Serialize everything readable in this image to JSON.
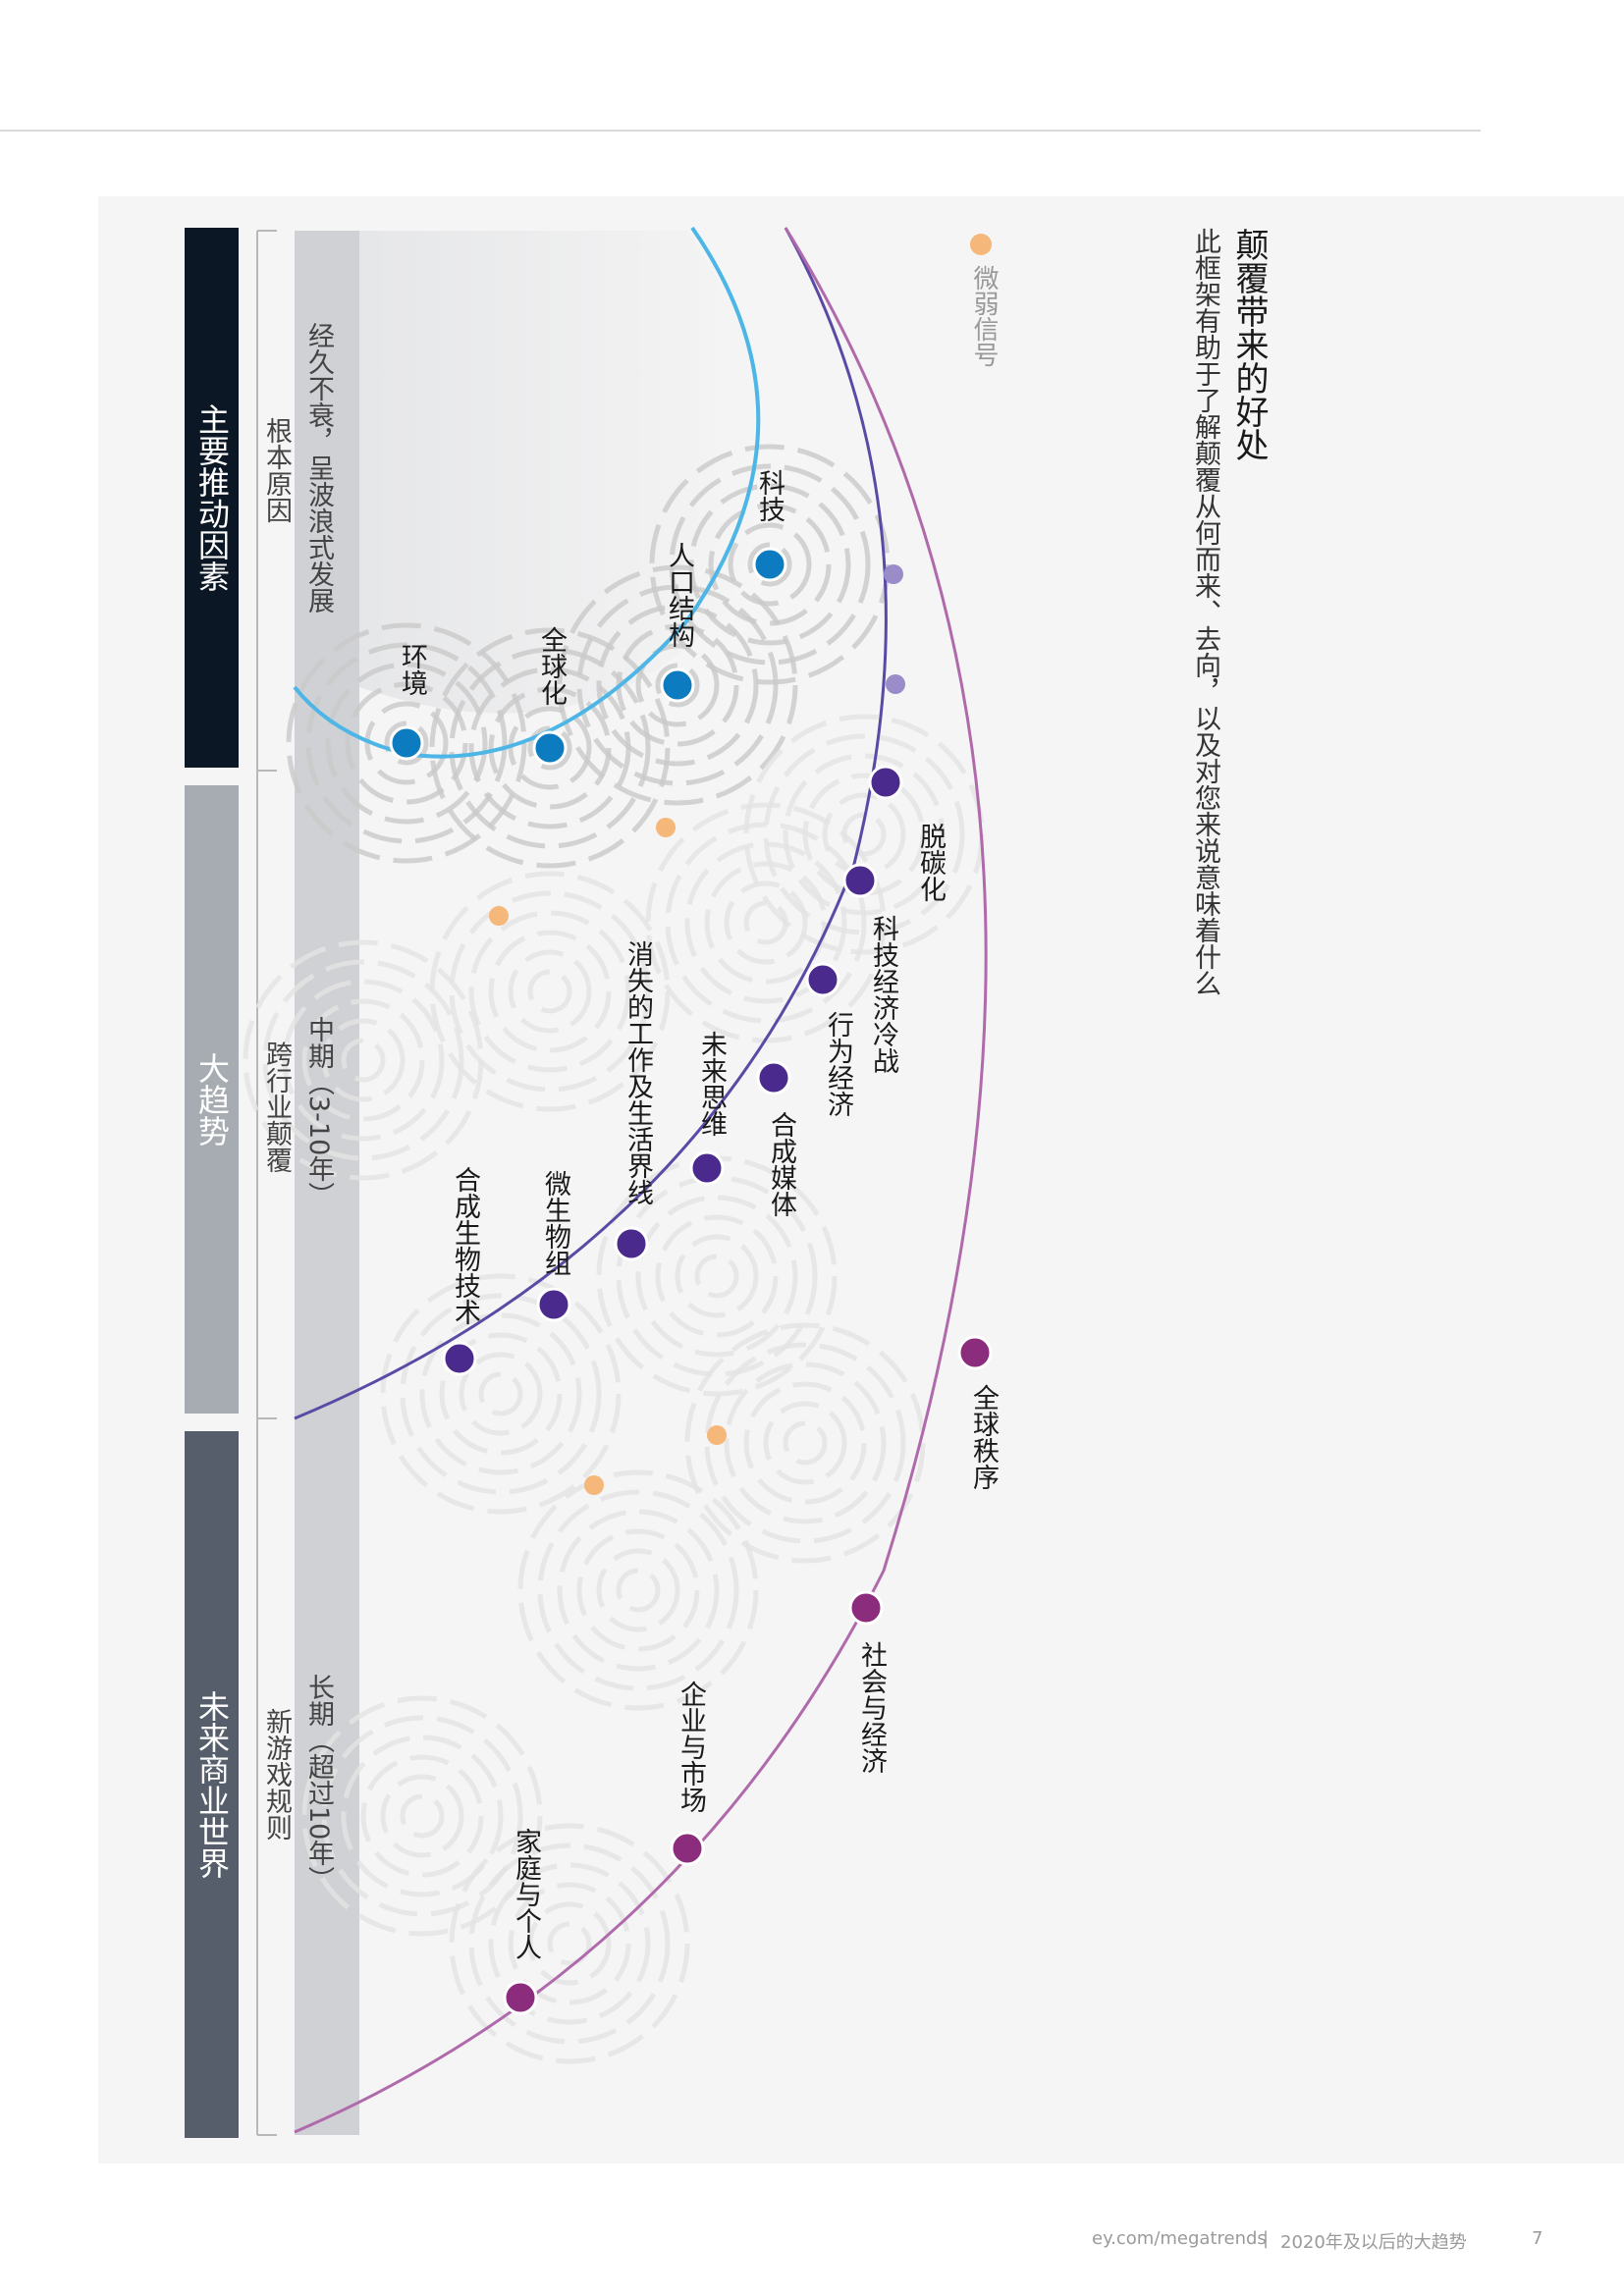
{
  "header": {
    "title": "颠覆带来的好处",
    "subtitle": "此框架有助于了解颠覆从何而来、去向，以及对您来说意味着什么"
  },
  "legend": {
    "weak_signal": "微弱信号",
    "weak_signal_color": "#f6b77a"
  },
  "categories": [
    {
      "label": "主要推动因素",
      "color": "#0c1726"
    },
    {
      "label": "大趋势",
      "color": "#a7acb2"
    },
    {
      "label": "未来商业世界",
      "color": "#555e6a"
    }
  ],
  "horizons": [
    {
      "term": "经久不衰，呈波浪式发展",
      "desc": "根本原因"
    },
    {
      "term": "中期（3-10年）",
      "desc": "跨行业颠覆"
    },
    {
      "term": "长期（超过10年）",
      "desc": "新游戏规则"
    }
  ],
  "drivers": {
    "color": "#0d7bbf",
    "items": [
      "科技",
      "人口结构",
      "全球化",
      "环境"
    ]
  },
  "megatrends": {
    "color": "#4a2a8c",
    "items": [
      "脱碳化",
      "科技经济冷战",
      "行为经济",
      "合成媒体",
      "未来思维",
      "消失的工作及生活界线",
      "微生物组",
      "合成生物技术"
    ]
  },
  "future_business": {
    "color": "#8b2c7c",
    "items": [
      "全球秩序",
      "社会与经济",
      "企业与市场",
      "家庭与个人"
    ]
  },
  "footer": {
    "url": "ey.com/megatrends",
    "title": "2020年及以后的大趋势",
    "page": "7"
  }
}
